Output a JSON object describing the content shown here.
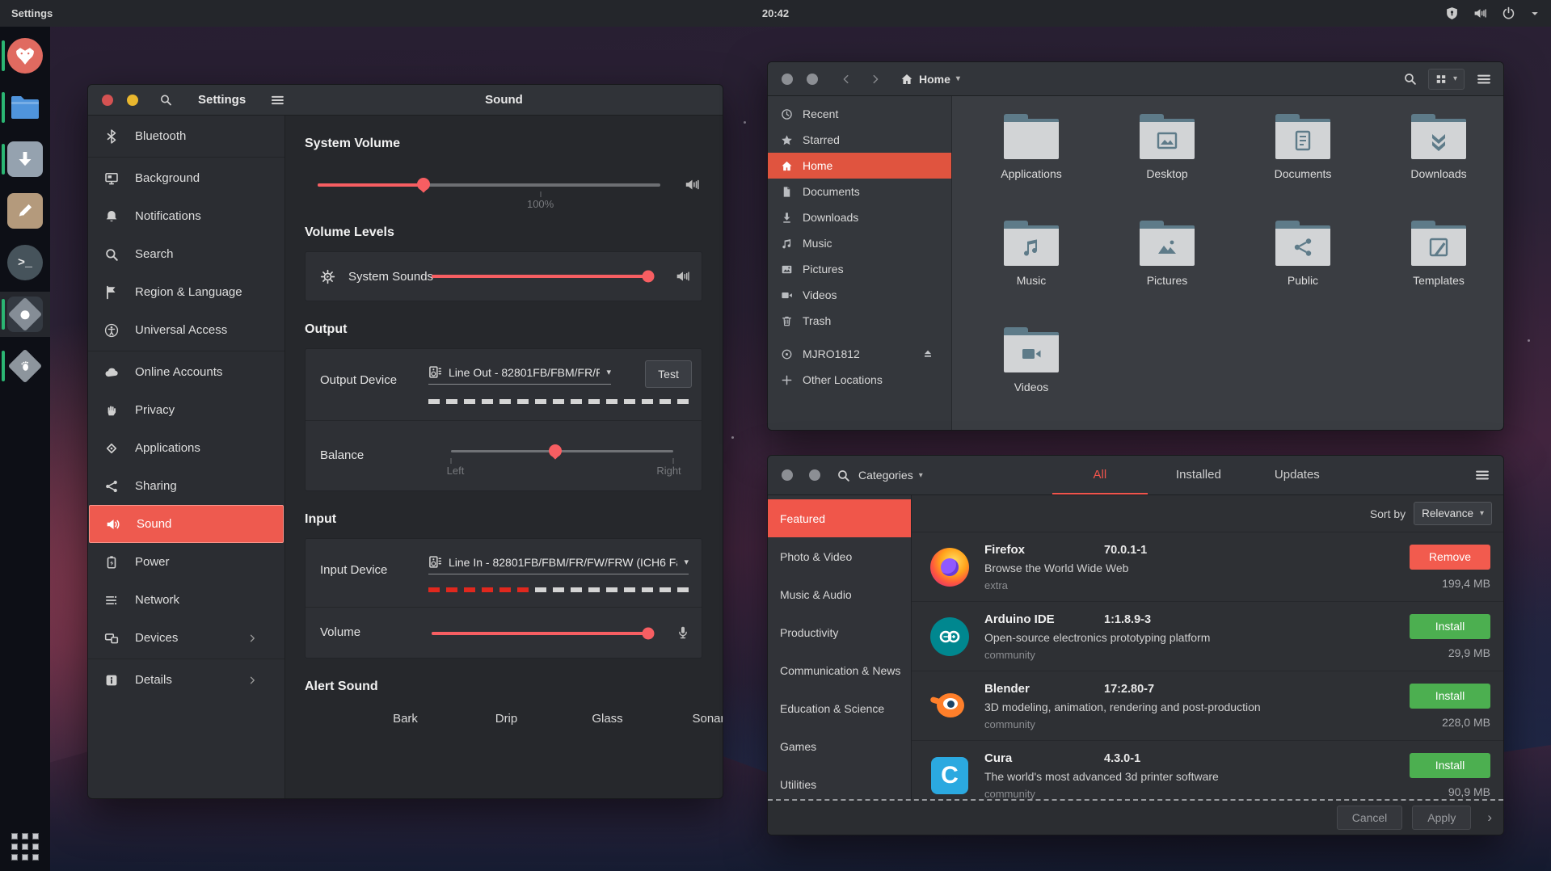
{
  "colors": {
    "accent_red": "#f0544c",
    "selection_red": "#ee5a4f",
    "files_selection": "#e0543f",
    "install_green": "#4caf50",
    "slider_red": "#f75e62",
    "dock_indicator_green": "#2bb673"
  },
  "topbar": {
    "app_name": "Settings",
    "clock": "20:42",
    "icons": [
      "shield-keyhole-icon",
      "volume-icon",
      "power-icon",
      "caret-down-icon"
    ]
  },
  "dock": {
    "items": [
      {
        "app": "firefox",
        "icon": "firefox",
        "running": true,
        "active": false
      },
      {
        "app": "files",
        "icon": "blue-folder",
        "running": true,
        "active": false
      },
      {
        "app": "downloader",
        "icon": "download-square",
        "running": true,
        "active": false
      },
      {
        "app": "text-editor",
        "icon": "pencil-square",
        "running": false,
        "active": false
      },
      {
        "app": "terminal",
        "icon": "terminal-prompt",
        "running": false,
        "active": false
      },
      {
        "app": "settings",
        "icon": "settings-diamond",
        "running": true,
        "active": true
      },
      {
        "app": "software",
        "icon": "software-diamond",
        "running": true,
        "active": false
      }
    ],
    "show_apps_icon": "app-grid"
  },
  "settings_window": {
    "title": "Settings",
    "panel_title": "Sound",
    "menu_icon": "menu",
    "search_icon": "search",
    "sidebar": [
      {
        "label": "Bluetooth",
        "icon": "bluetooth"
      },
      {
        "label": "Background",
        "icon": "background"
      },
      {
        "label": "Notifications",
        "icon": "bell"
      },
      {
        "label": "Search",
        "icon": "search"
      },
      {
        "label": "Region & Language",
        "icon": "flag"
      },
      {
        "label": "Universal Access",
        "icon": "access"
      },
      {
        "label": "Online Accounts",
        "icon": "cloud"
      },
      {
        "label": "Privacy",
        "icon": "hand"
      },
      {
        "label": "Applications",
        "icon": "apps-diamond"
      },
      {
        "label": "Sharing",
        "icon": "share"
      },
      {
        "label": "Sound",
        "icon": "speaker",
        "selected": true
      },
      {
        "label": "Power",
        "icon": "battery"
      },
      {
        "label": "Network",
        "icon": "network"
      },
      {
        "label": "Devices",
        "icon": "devices",
        "chevron": true
      },
      {
        "label": "Details",
        "icon": "info",
        "chevron": true
      }
    ],
    "sound": {
      "system_volume": {
        "label": "System Volume",
        "value_pct": 31,
        "tick_pct": 65,
        "tick_label": "100%",
        "icon": "volume"
      },
      "volume_levels": {
        "label": "Volume Levels",
        "row_label": "System Sounds",
        "row_icon": "gear-play",
        "value_pct": 100,
        "right_icon": "volume"
      },
      "output": {
        "label": "Output",
        "device_label": "Output Device",
        "device_icon": "audio-card",
        "device_value": "Line Out - 82801FB/FBM/FR/FW/F...",
        "test_label": "Test",
        "level_pct": 0,
        "balance_label": "Balance",
        "balance_left": "Left",
        "balance_right": "Right",
        "balance_pct": 47
      },
      "input": {
        "label": "Input",
        "device_label": "Input Device",
        "device_icon": "audio-card",
        "device_value": "Line In - 82801FB/FBM/FR/FW/FRW (ICH6 Fa...",
        "level_pct": 40,
        "volume_label": "Volume",
        "volume_pct": 100,
        "right_icon": "microphone"
      },
      "alert": {
        "label": "Alert Sound",
        "options": [
          "Bark",
          "Drip",
          "Glass",
          "Sonar"
        ]
      }
    }
  },
  "files_window": {
    "location": "Home",
    "home_icon": "home",
    "search_icon": "search",
    "view_icon": "grid-view",
    "menu_icon": "menu",
    "nav_icons": [
      "back-chevron",
      "forward-chevron"
    ],
    "sidebar": [
      {
        "label": "Recent",
        "icon": "clock"
      },
      {
        "label": "Starred",
        "icon": "star"
      },
      {
        "label": "Home",
        "icon": "home",
        "selected": true
      },
      {
        "label": "Documents",
        "icon": "document"
      },
      {
        "label": "Downloads",
        "icon": "download-arrow"
      },
      {
        "label": "Music",
        "icon": "music-note"
      },
      {
        "label": "Pictures",
        "icon": "picture"
      },
      {
        "label": "Videos",
        "icon": "video-camera"
      },
      {
        "label": "Trash",
        "icon": "trash"
      },
      {
        "label": "MJRO1812",
        "icon": "disc",
        "eject": true,
        "eject_icon": "eject"
      },
      {
        "label": "Other Locations",
        "icon": "plus"
      }
    ],
    "folders": [
      {
        "name": "Applications",
        "emblem": ""
      },
      {
        "name": "Desktop",
        "emblem": "emb-picture-frame"
      },
      {
        "name": "Documents",
        "emblem": "emb-document"
      },
      {
        "name": "Downloads",
        "emblem": "emb-chevrons-down"
      },
      {
        "name": "Music",
        "emblem": "emb-music"
      },
      {
        "name": "Pictures",
        "emblem": "emb-mountain"
      },
      {
        "name": "Public",
        "emblem": "emb-share"
      },
      {
        "name": "Templates",
        "emblem": "emb-template"
      },
      {
        "name": "Videos",
        "emblem": "emb-film-camera"
      }
    ]
  },
  "software_window": {
    "search_icon": "search",
    "menu_icon": "menu",
    "categories_button": {
      "label": "Categories",
      "caret": "▾"
    },
    "tabs": [
      {
        "label": "All",
        "selected": true
      },
      {
        "label": "Installed",
        "selected": false
      },
      {
        "label": "Updates",
        "selected": false
      }
    ],
    "categories": [
      {
        "label": "Featured",
        "selected": true
      },
      {
        "label": "Photo & Video"
      },
      {
        "label": "Music & Audio"
      },
      {
        "label": "Productivity"
      },
      {
        "label": "Communication & News"
      },
      {
        "label": "Education & Science"
      },
      {
        "label": "Games"
      },
      {
        "label": "Utilities"
      }
    ],
    "sort": {
      "label": "Sort by",
      "value": "Relevance",
      "caret": "▾"
    },
    "apps": [
      {
        "name": "Firefox",
        "version": "70.0.1-1",
        "desc": "Browse the World Wide Web",
        "repo": "extra",
        "action": "Remove",
        "action_kind": "remove",
        "size": "199,4 MB",
        "icon": "firefox-logo"
      },
      {
        "name": "Arduino IDE",
        "version": "1:1.8.9-3",
        "desc": "Open-source electronics prototyping platform",
        "repo": "community",
        "action": "Install",
        "action_kind": "install",
        "size": "29,9 MB",
        "icon": "arduino-logo"
      },
      {
        "name": "Blender",
        "version": "17:2.80-7",
        "desc": "3D modeling, animation, rendering and post-production",
        "repo": "community",
        "action": "Install",
        "action_kind": "install",
        "size": "228,0 MB",
        "icon": "blender-logo"
      },
      {
        "name": "Cura",
        "version": "4.3.0-1",
        "desc": "The world's most advanced 3d printer software",
        "repo": "community",
        "action": "Install",
        "action_kind": "install",
        "size": "90,9 MB",
        "icon": "cura-logo"
      }
    ],
    "footer": {
      "cancel": "Cancel",
      "apply": "Apply",
      "chevron": "›"
    }
  }
}
